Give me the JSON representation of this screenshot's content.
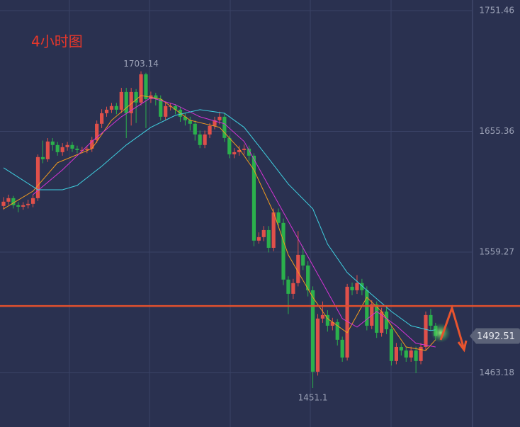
{
  "chart_data": {
    "type": "candlestick",
    "title": "4小时图",
    "open": [
      1596.0,
      1599.4,
      1602.2,
      1596.6,
      1595.4,
      1596.6,
      1597.7,
      1602.2,
      1634.9,
      1633.2,
      1647.3,
      1644.5,
      1638.8,
      1642.8,
      1644.5,
      1641.6,
      1640.5,
      1640.5,
      1641.6,
      1648.4,
      1661.4,
      1669.8,
      1672.6,
      1675.5,
      1672.6,
      1686.7,
      1669.8,
      1686.7,
      1678.3,
      1700.8,
      1681.1,
      1684.0,
      1681.1,
      1667.0,
      1675.5,
      1675.5,
      1672.6,
      1667.0,
      1664.2,
      1661.4,
      1652.9,
      1644.5,
      1652.9,
      1659.7,
      1664.2,
      1667.0,
      1650.1,
      1637.1,
      1638.8,
      1640.5,
      1641.6,
      1636.0,
      1568.4,
      1571.2,
      1576.8,
      1562.7,
      1590.9,
      1582.5,
      1537.4,
      1526.1,
      1534.6,
      1557.1,
      1548.6,
      1528.9,
      1464.1,
      1506.4,
      1509.2,
      1500.7,
      1503.6,
      1489.5,
      1475.4,
      1531.7,
      1528.9,
      1534.6,
      1528.9,
      1500.7,
      1517.7,
      1495.1,
      1512.0,
      1497.9,
      1472.6,
      1483.8,
      1481.0,
      1475.4,
      1481.0,
      1472.6,
      1483.8,
      1509.2,
      1500.7
    ],
    "close": [
      1599.4,
      1602.2,
      1596.6,
      1595.4,
      1596.6,
      1597.7,
      1602.2,
      1634.9,
      1633.2,
      1647.3,
      1644.5,
      1638.8,
      1642.8,
      1644.5,
      1641.6,
      1640.5,
      1640.5,
      1641.6,
      1648.4,
      1661.4,
      1669.8,
      1672.6,
      1675.5,
      1672.6,
      1686.7,
      1669.8,
      1686.7,
      1678.3,
      1700.8,
      1681.1,
      1684.0,
      1681.1,
      1667.0,
      1675.5,
      1675.5,
      1672.6,
      1667.0,
      1664.2,
      1661.4,
      1652.9,
      1644.5,
      1652.9,
      1659.7,
      1664.2,
      1667.0,
      1650.1,
      1637.1,
      1638.8,
      1640.5,
      1641.6,
      1636.0,
      1568.4,
      1571.2,
      1576.8,
      1562.7,
      1590.9,
      1582.5,
      1537.4,
      1526.1,
      1534.6,
      1557.1,
      1548.6,
      1528.9,
      1464.1,
      1506.4,
      1509.2,
      1500.7,
      1503.6,
      1489.5,
      1475.4,
      1531.7,
      1528.9,
      1534.6,
      1528.9,
      1500.7,
      1517.7,
      1495.1,
      1512.0,
      1497.9,
      1472.6,
      1483.8,
      1481.0,
      1475.4,
      1481.0,
      1472.6,
      1483.8,
      1509.2,
      1500.7,
      1492.51
    ],
    "high": [
      1603,
      1605,
      1604,
      1599,
      1599,
      1601,
      1605,
      1637,
      1648,
      1650,
      1650,
      1647,
      1646,
      1647,
      1647,
      1644,
      1643,
      1644,
      1651,
      1664,
      1673,
      1675,
      1678,
      1678,
      1690,
      1690,
      1690,
      1689,
      1703.14,
      1702,
      1687,
      1686,
      1684,
      1678,
      1678,
      1677,
      1675,
      1670,
      1667,
      1664,
      1656,
      1656,
      1662,
      1667,
      1671,
      1670,
      1652,
      1642,
      1644,
      1645,
      1644,
      1638,
      1575,
      1580,
      1580,
      1594,
      1594,
      1586,
      1540,
      1538,
      1576,
      1564,
      1552,
      1532,
      1510,
      1520,
      1513,
      1507,
      1506,
      1492,
      1534,
      1535,
      1541,
      1538,
      1532,
      1521,
      1520,
      1515,
      1515,
      1500,
      1487,
      1487,
      1484,
      1484,
      1484,
      1487,
      1512,
      1514,
      1503
    ],
    "low": [
      1593,
      1597,
      1594,
      1591,
      1593,
      1594,
      1595,
      1600,
      1630,
      1631,
      1640,
      1636,
      1636,
      1640,
      1639,
      1638,
      1638,
      1638,
      1639,
      1646,
      1658,
      1667,
      1670,
      1669,
      1670,
      1650,
      1660,
      1662,
      1676,
      1658,
      1678,
      1676,
      1664,
      1664,
      1672,
      1669,
      1663,
      1660,
      1656,
      1648,
      1642,
      1642,
      1650,
      1657,
      1661,
      1647,
      1634,
      1634,
      1636,
      1637,
      1632,
      1564,
      1566,
      1568,
      1559,
      1560,
      1579,
      1533,
      1510,
      1522,
      1532,
      1545,
      1524,
      1451.1,
      1461,
      1503,
      1496,
      1497,
      1485,
      1472,
      1473,
      1525,
      1526,
      1525,
      1497,
      1498,
      1491,
      1492,
      1494,
      1469,
      1470,
      1477,
      1472,
      1472,
      1463,
      1470,
      1481,
      1497,
      1489
    ],
    "up_color": "#e0504a",
    "down_color": "#2bb04c",
    "series": [
      {
        "color": "#f39c1e",
        "x": [
          0,
          6,
          11,
          18,
          22,
          28,
          32,
          38,
          44,
          48,
          51,
          55,
          58,
          63,
          66,
          70,
          74,
          77,
          82,
          86,
          88
        ],
        "values": [
          1593.7,
          1607.8,
          1630.4,
          1641.6,
          1664.2,
          1683.9,
          1681.1,
          1664.2,
          1658.6,
          1641.6,
          1624.7,
          1590.9,
          1557.1,
          1523.3,
          1506.4,
          1495.1,
          1523.3,
          1512.0,
          1483.8,
          1481.0,
          1489.5
        ]
      },
      {
        "color": "#d633d6",
        "x": [
          6,
          12,
          18,
          24,
          30,
          35,
          40,
          45,
          49,
          53,
          57,
          61,
          65,
          69,
          72,
          76,
          80,
          84,
          88
        ],
        "values": [
          1605.0,
          1624.7,
          1647.3,
          1667.0,
          1682.2,
          1676.6,
          1667.0,
          1661.4,
          1647.3,
          1619.1,
          1590.9,
          1562.7,
          1534.6,
          1506.4,
          1499.6,
          1512.0,
          1500.7,
          1486.7,
          1483.8
        ]
      },
      {
        "color": "#3fd0e0",
        "x": [
          0,
          7,
          12,
          15,
          20,
          25,
          30,
          35,
          40,
          45,
          49,
          53,
          58,
          63,
          66,
          70,
          74,
          79,
          83,
          87,
          88
        ],
        "values": [
          1626.4,
          1608.9,
          1608.9,
          1612.3,
          1627.6,
          1644.5,
          1658.6,
          1668.1,
          1672.6,
          1669.8,
          1658.6,
          1638.8,
          1613.5,
          1593.7,
          1565.6,
          1543.0,
          1528.9,
          1512.0,
          1500.7,
          1496.8,
          1497.4
        ]
      }
    ],
    "xlim": [
      -0.72,
      95.67
    ],
    "ylim": [
      1420.1,
      1759.9
    ],
    "yticks": [
      1751.46,
      1655.36,
      1559.27,
      1463.18
    ],
    "grid": true,
    "hline": {
      "value": 1516.4,
      "color": "#e0502e"
    },
    "last_price": 1492.51,
    "high_label": 1703.14,
    "low_label": 1451.1
  }
}
